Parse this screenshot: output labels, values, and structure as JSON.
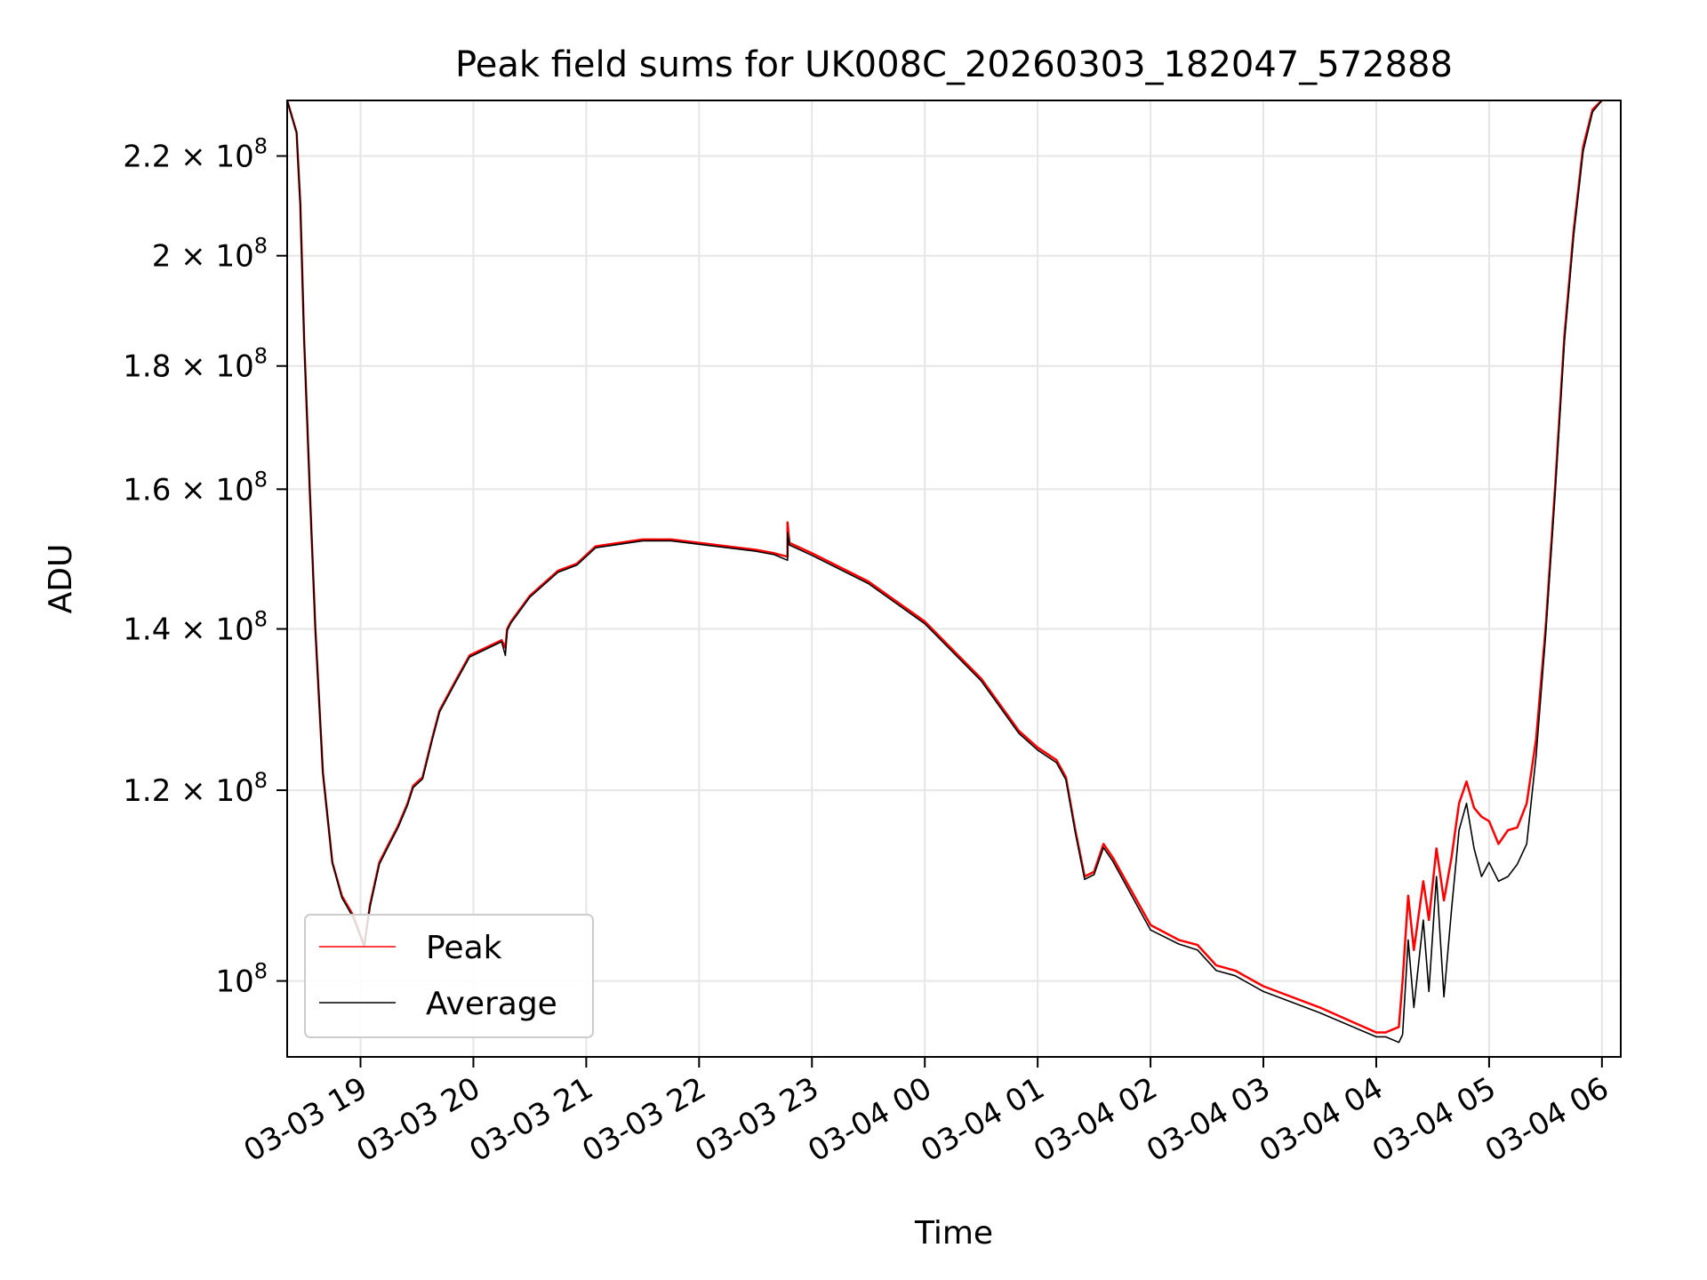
{
  "chart_data": {
    "type": "line",
    "title": "Peak field sums for UK008C_20260303_182047_572888",
    "xlabel": "Time",
    "ylabel": "ADU",
    "y_scale": "log",
    "ylim": [
      93000000,
      232000000
    ],
    "xlim": [
      "2026-03-03 18:21",
      "2026-03-04 06:10"
    ],
    "grid": true,
    "legend_position": "lower-left",
    "x_ticks": [
      {
        "value": "2026-03-03 19:00",
        "label": "03-03 19"
      },
      {
        "value": "2026-03-03 20:00",
        "label": "03-03 20"
      },
      {
        "value": "2026-03-03 21:00",
        "label": "03-03 21"
      },
      {
        "value": "2026-03-03 22:00",
        "label": "03-03 22"
      },
      {
        "value": "2026-03-03 23:00",
        "label": "03-03 23"
      },
      {
        "value": "2026-03-04 00:00",
        "label": "03-04 00"
      },
      {
        "value": "2026-03-04 01:00",
        "label": "03-04 01"
      },
      {
        "value": "2026-03-04 02:00",
        "label": "03-04 02"
      },
      {
        "value": "2026-03-04 03:00",
        "label": "03-04 03"
      },
      {
        "value": "2026-03-04 04:00",
        "label": "03-04 04"
      },
      {
        "value": "2026-03-04 05:00",
        "label": "03-04 05"
      },
      {
        "value": "2026-03-04 06:00",
        "label": "03-04 06"
      }
    ],
    "y_ticks": [
      {
        "value": 100000000,
        "mantissa": "",
        "exponent": "8"
      },
      {
        "value": 120000000,
        "mantissa": "1.2",
        "exponent": "8"
      },
      {
        "value": 140000000,
        "mantissa": "1.4",
        "exponent": "8"
      },
      {
        "value": 160000000,
        "mantissa": "1.6",
        "exponent": "8"
      },
      {
        "value": 180000000,
        "mantissa": "1.8",
        "exponent": "8"
      },
      {
        "value": 200000000,
        "mantissa": "2",
        "exponent": "8"
      },
      {
        "value": 220000000,
        "mantissa": "2.2",
        "exponent": "8"
      }
    ],
    "series": [
      {
        "name": "Peak",
        "color": "#ff0000",
        "x": [
          "2026-03-03 18:21",
          "2026-03-03 18:26",
          "2026-03-03 18:28",
          "2026-03-03 18:30",
          "2026-03-03 18:33",
          "2026-03-03 18:36",
          "2026-03-03 18:40",
          "2026-03-03 18:45",
          "2026-03-03 18:50",
          "2026-03-03 18:56",
          "2026-03-03 19:02",
          "2026-03-03 19:05",
          "2026-03-03 19:10",
          "2026-03-03 19:15",
          "2026-03-03 19:20",
          "2026-03-03 19:25",
          "2026-03-03 19:28",
          "2026-03-03 19:33",
          "2026-03-03 19:38",
          "2026-03-03 19:42",
          "2026-03-03 19:50",
          "2026-03-03 19:58",
          "2026-03-03 20:15",
          "2026-03-03 20:17",
          "2026-03-03 20:18",
          "2026-03-03 20:20",
          "2026-03-03 20:30",
          "2026-03-03 20:45",
          "2026-03-03 20:55",
          "2026-03-03 21:05",
          "2026-03-03 21:30",
          "2026-03-03 21:45",
          "2026-03-03 22:00",
          "2026-03-03 22:15",
          "2026-03-03 22:30",
          "2026-03-03 22:40",
          "2026-03-03 22:47",
          "2026-03-03 22:47",
          "2026-03-03 22:48",
          "2026-03-03 23:00",
          "2026-03-03 23:30",
          "2026-03-04 00:00",
          "2026-03-04 00:30",
          "2026-03-04 00:50",
          "2026-03-04 01:00",
          "2026-03-04 01:10",
          "2026-03-04 01:15",
          "2026-03-04 01:20",
          "2026-03-04 01:25",
          "2026-03-04 01:30",
          "2026-03-04 01:35",
          "2026-03-04 01:40",
          "2026-03-04 02:00",
          "2026-03-04 02:15",
          "2026-03-04 02:25",
          "2026-03-04 02:35",
          "2026-03-04 02:45",
          "2026-03-04 03:00",
          "2026-03-04 03:30",
          "2026-03-04 04:00",
          "2026-03-04 04:05",
          "2026-03-04 04:12",
          "2026-03-04 04:14",
          "2026-03-04 04:17",
          "2026-03-04 04:20",
          "2026-03-04 04:25",
          "2026-03-04 04:28",
          "2026-03-04 04:32",
          "2026-03-04 04:36",
          "2026-03-04 04:40",
          "2026-03-04 04:44",
          "2026-03-04 04:48",
          "2026-03-04 04:52",
          "2026-03-04 04:56",
          "2026-03-04 05:00",
          "2026-03-04 05:05",
          "2026-03-04 05:10",
          "2026-03-04 05:15",
          "2026-03-04 05:20",
          "2026-03-04 05:25",
          "2026-03-04 05:30",
          "2026-03-04 05:35",
          "2026-03-04 05:40",
          "2026-03-04 05:45",
          "2026-03-04 05:50",
          "2026-03-04 05:55",
          "2026-03-04 06:00"
        ],
        "values": [
          232000000,
          225000000,
          210000000,
          185000000,
          160000000,
          140000000,
          122000000,
          112000000,
          108500000,
          106500000,
          103500000,
          107500000,
          112000000,
          114000000,
          116000000,
          118500000,
          120500000,
          121500000,
          126000000,
          129500000,
          133000000,
          136500000,
          138500000,
          137500000,
          140000000,
          141000000,
          144500000,
          148000000,
          149000000,
          151500000,
          152500000,
          152500000,
          152000000,
          151500000,
          151000000,
          150500000,
          150000000,
          155000000,
          152000000,
          150500000,
          146500000,
          141000000,
          133500000,
          127000000,
          125000000,
          123500000,
          121500000,
          115500000,
          110500000,
          111000000,
          114000000,
          112500000,
          105500000,
          104000000,
          103500000,
          101500000,
          101000000,
          99500000,
          97500000,
          95200000,
          95200000,
          95700000,
          100000000,
          108500000,
          103000000,
          110000000,
          106000000,
          113500000,
          108000000,
          112500000,
          118500000,
          121000000,
          118000000,
          117000000,
          116500000,
          114000000,
          115500000,
          115800000,
          118500000,
          126000000,
          140000000,
          160000000,
          185000000,
          205000000,
          222000000,
          230000000,
          232000000
        ]
      },
      {
        "name": "Average",
        "color": "#000000",
        "x": [
          "2026-03-03 18:21",
          "2026-03-03 18:26",
          "2026-03-03 18:28",
          "2026-03-03 18:30",
          "2026-03-03 18:33",
          "2026-03-03 18:36",
          "2026-03-03 18:40",
          "2026-03-03 18:45",
          "2026-03-03 18:50",
          "2026-03-03 18:56",
          "2026-03-03 19:02",
          "2026-03-03 19:05",
          "2026-03-03 19:10",
          "2026-03-03 19:15",
          "2026-03-03 19:20",
          "2026-03-03 19:25",
          "2026-03-03 19:28",
          "2026-03-03 19:33",
          "2026-03-03 19:38",
          "2026-03-03 19:42",
          "2026-03-03 19:50",
          "2026-03-03 19:58",
          "2026-03-03 20:15",
          "2026-03-03 20:17",
          "2026-03-03 20:18",
          "2026-03-03 20:20",
          "2026-03-03 20:30",
          "2026-03-03 20:45",
          "2026-03-03 20:55",
          "2026-03-03 21:05",
          "2026-03-03 21:30",
          "2026-03-03 21:45",
          "2026-03-03 22:00",
          "2026-03-03 22:15",
          "2026-03-03 22:30",
          "2026-03-03 22:40",
          "2026-03-03 22:47",
          "2026-03-03 22:47",
          "2026-03-03 22:48",
          "2026-03-03 23:00",
          "2026-03-03 23:30",
          "2026-03-04 00:00",
          "2026-03-04 00:30",
          "2026-03-04 00:50",
          "2026-03-04 01:00",
          "2026-03-04 01:10",
          "2026-03-04 01:15",
          "2026-03-04 01:20",
          "2026-03-04 01:25",
          "2026-03-04 01:30",
          "2026-03-04 01:35",
          "2026-03-04 01:40",
          "2026-03-04 02:00",
          "2026-03-04 02:15",
          "2026-03-04 02:25",
          "2026-03-04 02:35",
          "2026-03-04 02:45",
          "2026-03-04 03:00",
          "2026-03-04 03:30",
          "2026-03-04 04:00",
          "2026-03-04 04:05",
          "2026-03-04 04:12",
          "2026-03-04 04:14",
          "2026-03-04 04:17",
          "2026-03-04 04:20",
          "2026-03-04 04:25",
          "2026-03-04 04:28",
          "2026-03-04 04:32",
          "2026-03-04 04:36",
          "2026-03-04 04:40",
          "2026-03-04 04:44",
          "2026-03-04 04:48",
          "2026-03-04 04:52",
          "2026-03-04 04:56",
          "2026-03-04 05:00",
          "2026-03-04 05:05",
          "2026-03-04 05:10",
          "2026-03-04 05:15",
          "2026-03-04 05:20",
          "2026-03-04 05:25",
          "2026-03-04 05:30",
          "2026-03-04 05:35",
          "2026-03-04 05:40",
          "2026-03-04 05:45",
          "2026-03-04 05:50",
          "2026-03-04 05:55",
          "2026-03-04 06:00"
        ],
        "values": [
          232000000,
          225000000,
          210000000,
          185000000,
          160000000,
          140000000,
          122000000,
          112000000,
          108300000,
          106300000,
          103300000,
          107300000,
          111800000,
          113800000,
          115800000,
          118300000,
          120300000,
          121300000,
          125800000,
          129300000,
          132800000,
          136300000,
          138300000,
          136500000,
          139800000,
          140800000,
          144300000,
          147800000,
          148800000,
          151300000,
          152300000,
          152300000,
          151800000,
          151300000,
          150800000,
          150300000,
          149500000,
          153500000,
          151700000,
          150200000,
          146200000,
          140700000,
          133200000,
          126700000,
          124700000,
          123200000,
          121200000,
          115200000,
          110200000,
          110700000,
          113600000,
          112100000,
          105000000,
          103600000,
          103000000,
          101000000,
          100500000,
          99000000,
          97000000,
          94800000,
          94800000,
          94300000,
          95000000,
          104000000,
          97500000,
          106000000,
          99000000,
          110500000,
          98500000,
          107000000,
          115500000,
          118500000,
          113500000,
          110500000,
          112000000,
          110000000,
          110500000,
          111800000,
          114000000,
          124000000,
          139000000,
          159000000,
          184000000,
          204000000,
          221000000,
          229500000,
          232000000
        ]
      }
    ]
  }
}
